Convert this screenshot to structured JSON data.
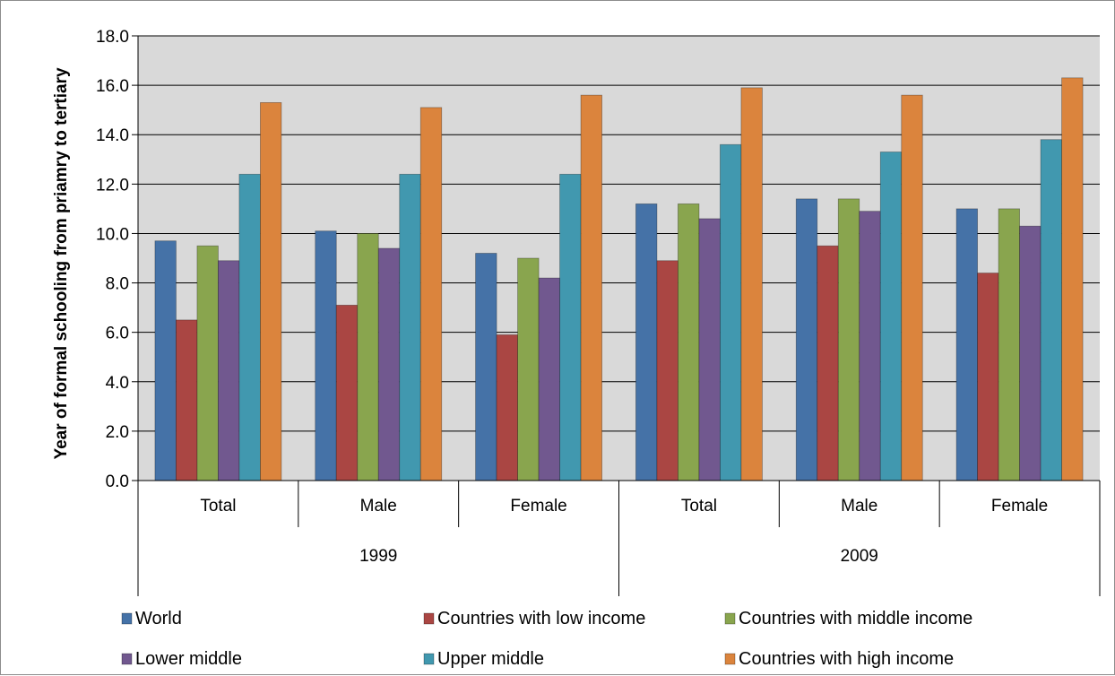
{
  "chart_data": {
    "type": "bar",
    "title": "",
    "ylabel": "Year of formal schooling from priamry to tertiary",
    "xlabel": "",
    "ylim": [
      0,
      18
    ],
    "ytick_step": 2,
    "ytick_labels": [
      "0.0",
      "2.0",
      "4.0",
      "6.0",
      "8.0",
      "10.0",
      "12.0",
      "14.0",
      "16.0",
      "18.0"
    ],
    "grid": true,
    "legend_position": "bottom",
    "categories": [
      "Total",
      "Male",
      "Female",
      "Total",
      "Male",
      "Female"
    ],
    "groups": [
      {
        "label": "1999",
        "categories": [
          "Total",
          "Male",
          "Female"
        ]
      },
      {
        "label": "2009",
        "categories": [
          "Total",
          "Male",
          "Female"
        ]
      }
    ],
    "series": [
      {
        "name": "World",
        "color": "#4572a7",
        "values": [
          9.7,
          10.1,
          9.2,
          11.2,
          11.4,
          11.0
        ]
      },
      {
        "name": "Countries with low income",
        "color": "#aa4643",
        "values": [
          6.5,
          7.1,
          5.9,
          8.9,
          9.5,
          8.4
        ]
      },
      {
        "name": "Countries with middle income",
        "color": "#89a54e",
        "values": [
          9.5,
          10.0,
          9.0,
          11.2,
          11.4,
          11.0
        ]
      },
      {
        "name": "Lower middle",
        "color": "#71588f",
        "values": [
          8.9,
          9.4,
          8.2,
          10.6,
          10.9,
          10.3
        ]
      },
      {
        "name": "Upper middle",
        "color": "#4198af",
        "values": [
          12.4,
          12.4,
          12.4,
          13.6,
          13.3,
          13.8
        ]
      },
      {
        "name": "Countries with high income",
        "color": "#db843d",
        "values": [
          15.3,
          15.1,
          15.6,
          15.9,
          15.6,
          16.3
        ]
      }
    ]
  },
  "colors": {
    "plot_background": "#d9d9d9",
    "gridline": "#000000",
    "axis": "#000000"
  }
}
